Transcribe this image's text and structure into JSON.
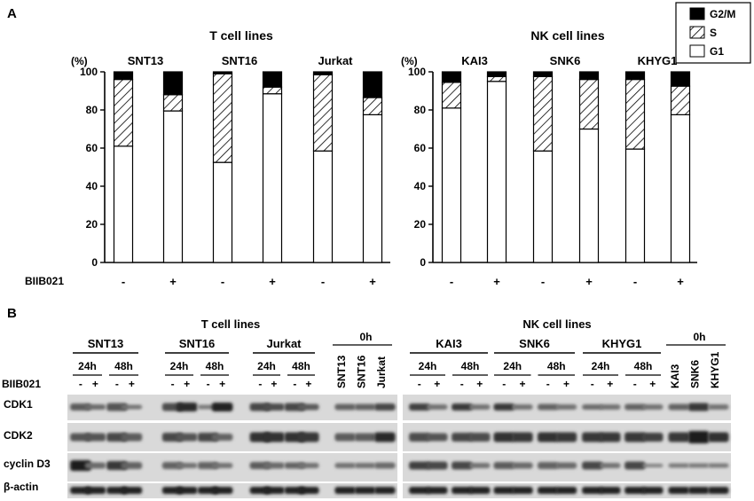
{
  "panel_a": {
    "label": "A",
    "legend": [
      {
        "name": "G2/M",
        "fill": "black"
      },
      {
        "name": "S",
        "fill": "hatch"
      },
      {
        "name": "G1",
        "fill": "white"
      }
    ],
    "bottom_row_label": "BIIB021",
    "treatment_marks": [
      "-",
      "+",
      "-",
      "+",
      "-",
      "+"
    ]
  },
  "chart_data": [
    {
      "type": "bar",
      "stacked": true,
      "title": "T cell lines",
      "ylabel": "(%)",
      "ylim": [
        0,
        100
      ],
      "yticks": [
        0,
        20,
        40,
        60,
        80,
        100
      ],
      "cell_lines": [
        "SNT13",
        "SNT16",
        "Jurkat"
      ],
      "categories": [
        "SNT13 -",
        "SNT13 +",
        "SNT16 -",
        "SNT16 +",
        "Jurkat -",
        "Jurkat +"
      ],
      "series": [
        {
          "name": "G1",
          "values": [
            61,
            79.5,
            52.5,
            88.5,
            58.5,
            77.5
          ]
        },
        {
          "name": "S",
          "values": [
            35,
            8.5,
            46.5,
            3.5,
            40,
            9
          ]
        },
        {
          "name": "G2/M",
          "values": [
            4,
            12,
            1,
            8,
            1.5,
            13.5
          ]
        }
      ]
    },
    {
      "type": "bar",
      "stacked": true,
      "title": "NK cell lines",
      "ylabel": "(%)",
      "ylim": [
        0,
        100
      ],
      "yticks": [
        0,
        20,
        40,
        60,
        80,
        100
      ],
      "cell_lines": [
        "KAI3",
        "SNK6",
        "KHYG1"
      ],
      "categories": [
        "KAI3 -",
        "KAI3 +",
        "SNK6 -",
        "SNK6 +",
        "KHYG1 -",
        "KHYG1 +"
      ],
      "series": [
        {
          "name": "G1",
          "values": [
            81,
            95,
            58.5,
            70,
            59.5,
            77.5
          ]
        },
        {
          "name": "S",
          "values": [
            13.5,
            2.5,
            39,
            26,
            36.5,
            15
          ]
        },
        {
          "name": "G2/M",
          "values": [
            5.5,
            2.5,
            2.5,
            4,
            4,
            7.5
          ]
        }
      ]
    }
  ],
  "panel_b": {
    "label": "B",
    "left_title": "T cell lines",
    "right_title": "NK cell lines",
    "treatment_label": "BIIB021",
    "left_lines": [
      "SNT13",
      "SNT16",
      "Jurkat"
    ],
    "right_lines": [
      "KAI3",
      "SNK6",
      "KHYG1"
    ],
    "zero_label": "0h",
    "times": [
      "24h",
      "48h"
    ],
    "marks": [
      "-",
      "+"
    ],
    "left_zero_lanes": [
      "SNT13",
      "SNT16",
      "Jurkat"
    ],
    "right_zero_lanes": [
      "KAI3",
      "SNK6",
      "KHYG1"
    ],
    "proteins": [
      "CDK1",
      "CDK2",
      "cyclin D3",
      "β-actin"
    ]
  }
}
